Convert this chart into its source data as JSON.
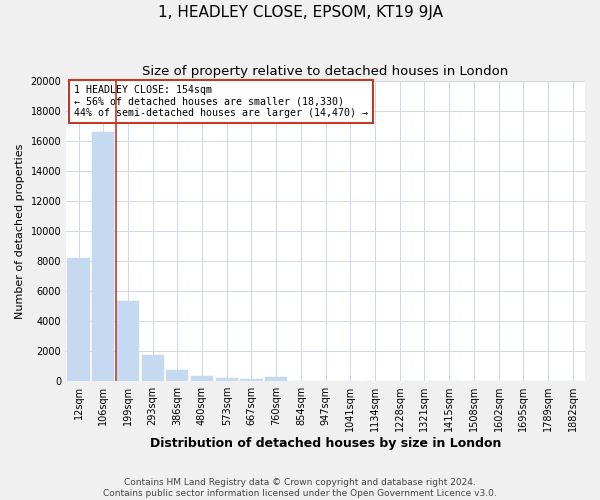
{
  "title": "1, HEADLEY CLOSE, EPSOM, KT19 9JA",
  "subtitle": "Size of property relative to detached houses in London",
  "xlabel": "Distribution of detached houses by size in London",
  "ylabel": "Number of detached properties",
  "categories": [
    "12sqm",
    "106sqm",
    "199sqm",
    "293sqm",
    "386sqm",
    "480sqm",
    "573sqm",
    "667sqm",
    "760sqm",
    "854sqm",
    "947sqm",
    "1041sqm",
    "1134sqm",
    "1228sqm",
    "1321sqm",
    "1415sqm",
    "1508sqm",
    "1602sqm",
    "1695sqm",
    "1789sqm",
    "1882sqm"
  ],
  "values": [
    8200,
    16600,
    5300,
    1750,
    750,
    350,
    200,
    130,
    270,
    0,
    0,
    0,
    0,
    0,
    0,
    0,
    0,
    0,
    0,
    0,
    0
  ],
  "bar_color": "#c5d9f0",
  "bar_edge_color": "#c5d9f0",
  "vline_x": 1.5,
  "vline_color": "#c0392b",
  "annotation_text": "1 HEADLEY CLOSE: 154sqm\n← 56% of detached houses are smaller (18,330)\n44% of semi-detached houses are larger (14,470) →",
  "annotation_box_color": "white",
  "annotation_box_edge": "#c0392b",
  "ylim": [
    0,
    20000
  ],
  "yticks": [
    0,
    2000,
    4000,
    6000,
    8000,
    10000,
    12000,
    14000,
    16000,
    18000,
    20000
  ],
  "footnote": "Contains HM Land Registry data © Crown copyright and database right 2024.\nContains public sector information licensed under the Open Government Licence v3.0.",
  "fig_bg_color": "#f0f0f0",
  "plot_bg_color": "#ffffff",
  "title_fontsize": 11,
  "subtitle_fontsize": 9.5,
  "xlabel_fontsize": 9,
  "ylabel_fontsize": 8,
  "tick_fontsize": 7,
  "footnote_fontsize": 6.5
}
